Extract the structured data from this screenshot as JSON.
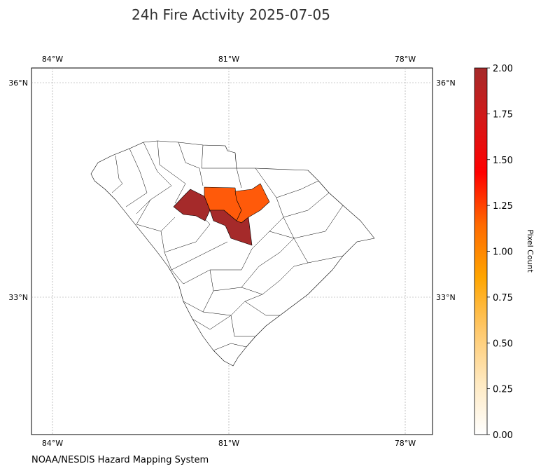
{
  "title": "24h Fire Activity 2025-07-05",
  "credit": "NOAA/NESDIS Hazard Mapping System",
  "colorbar": {
    "label": "Pixel Count",
    "ticks": [
      "0.00",
      "0.25",
      "0.50",
      "0.75",
      "1.00",
      "1.25",
      "1.50",
      "1.75",
      "2.00"
    ],
    "min": 0,
    "max": 2,
    "colormap": [
      "#ffffff",
      "#ffe9c0",
      "#ffc86a",
      "#ffa500",
      "#ff6a00",
      "#ff0000",
      "#d41818",
      "#a52a2a"
    ]
  },
  "axes": {
    "lon_labels": [
      "84°W",
      "81°W",
      "78°W"
    ],
    "lat_labels": [
      "36°N",
      "33°N"
    ]
  },
  "chart_data": {
    "type": "heatmap",
    "title": "24h Fire Activity 2025-07-05",
    "region": "South Carolina counties",
    "value_label": "Pixel Count",
    "value_range": [
      0,
      2
    ],
    "highlighted_regions": [
      {
        "region": "western-central county",
        "value": 2,
        "color": "#a52a2a"
      },
      {
        "region": "central-north county",
        "value": 1,
        "color": "#ff5a0a"
      },
      {
        "region": "central-east county",
        "value": 1,
        "color": "#ff5a0a"
      },
      {
        "region": "central county",
        "value": 2,
        "color": "#a52a2a"
      }
    ],
    "grid": true
  }
}
